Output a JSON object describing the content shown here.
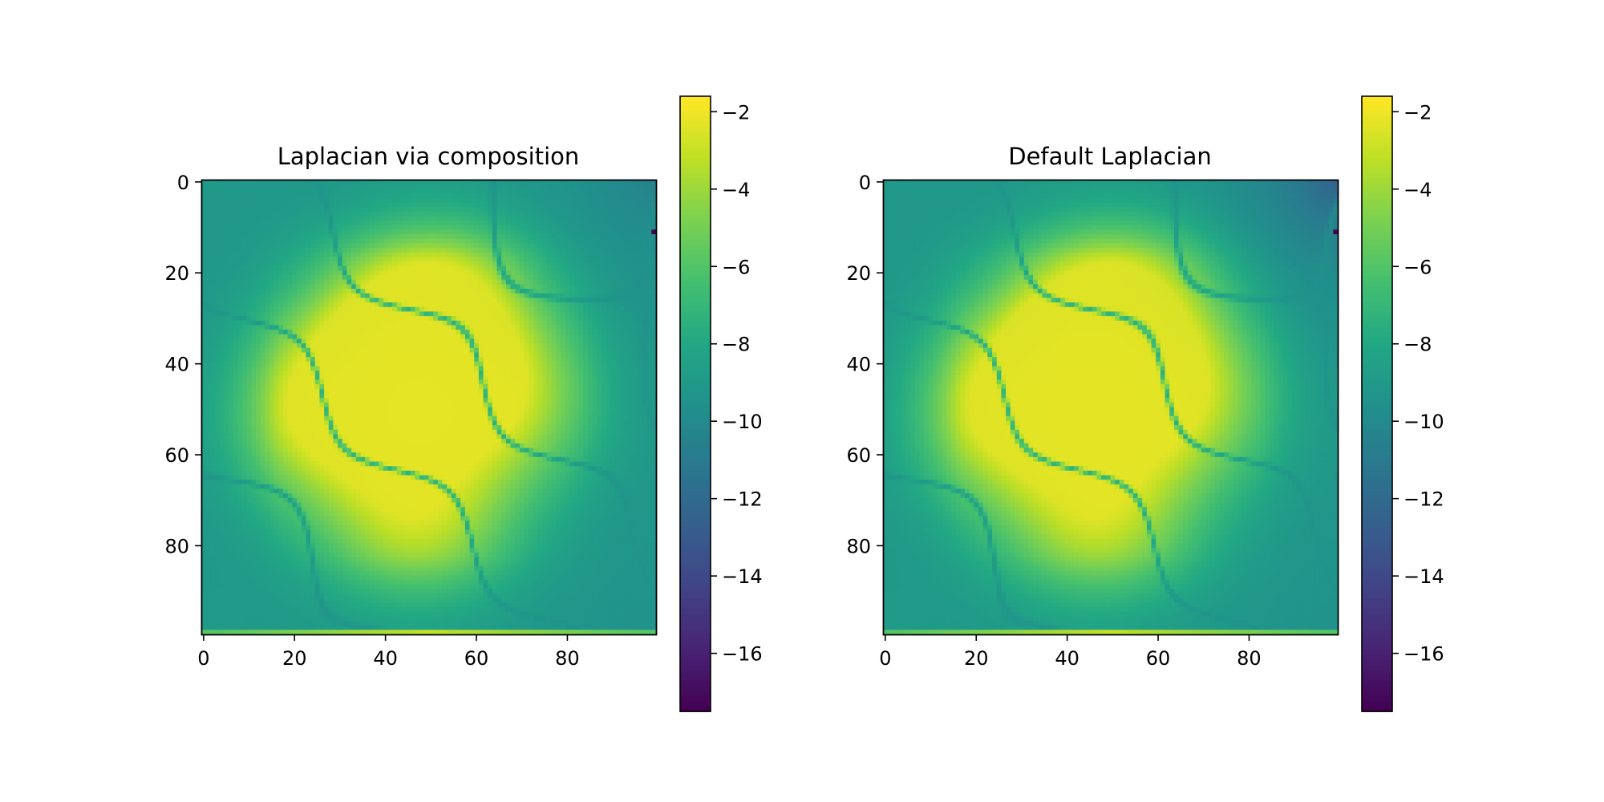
{
  "chart_data": [
    {
      "type": "heatmap",
      "title": "Laplacian via composition",
      "xlabel": "",
      "ylabel": "",
      "grid_size": [
        100,
        100
      ],
      "xlim": [
        -0.5,
        99.5
      ],
      "ylim": [
        99.5,
        -0.5
      ],
      "x_ticks": [
        0,
        20,
        40,
        60,
        80
      ],
      "x_tick_labels": [
        "0",
        "20",
        "40",
        "60",
        "80"
      ],
      "y_ticks": [
        0,
        20,
        40,
        60,
        80
      ],
      "y_tick_labels": [
        "0",
        "20",
        "40",
        "60",
        "80"
      ],
      "colormap": "viridis",
      "colorbar": {
        "range": [
          -17.5,
          -1.6
        ],
        "ticks": [
          -2,
          -4,
          -6,
          -8,
          -10,
          -12,
          -14,
          -16
        ],
        "tick_labels": [
          "−2",
          "−4",
          "−6",
          "−8",
          "−10",
          "−12",
          "−14",
          "−16"
        ]
      },
      "value_range": [
        -17.5,
        -1.6
      ],
      "features": {
        "peak_lobes": [
          {
            "center_x": 52,
            "center_y": 25,
            "value": -1.8
          },
          {
            "center_x": 47,
            "center_y": 75,
            "value": -1.9
          },
          {
            "center_x": 40,
            "center_y": 38,
            "value": -2.4
          },
          {
            "center_x": 25,
            "center_y": 52,
            "value": -2.7
          },
          {
            "center_x": 65,
            "center_y": 48,
            "value": -2.8
          }
        ],
        "zero_contour_value": -9.5,
        "corner_values": {
          "top_left": -9.0,
          "top_right": -10.5,
          "bottom_left": -8.8,
          "bottom_right": -9.5
        },
        "minimum": {
          "x": 99,
          "y": 11,
          "value": -17.5
        }
      }
    },
    {
      "type": "heatmap",
      "title": "Default Laplacian",
      "xlabel": "",
      "ylabel": "",
      "grid_size": [
        100,
        100
      ],
      "xlim": [
        -0.5,
        99.5
      ],
      "ylim": [
        99.5,
        -0.5
      ],
      "x_ticks": [
        0,
        20,
        40,
        60,
        80
      ],
      "x_tick_labels": [
        "0",
        "20",
        "40",
        "60",
        "80"
      ],
      "y_ticks": [
        0,
        20,
        40,
        60,
        80
      ],
      "y_tick_labels": [
        "0",
        "20",
        "40",
        "60",
        "80"
      ],
      "colormap": "viridis",
      "colorbar": {
        "range": [
          -17.5,
          -1.6
        ],
        "ticks": [
          -2,
          -4,
          -6,
          -8,
          -10,
          -12,
          -14,
          -16
        ],
        "tick_labels": [
          "−2",
          "−4",
          "−6",
          "−8",
          "−10",
          "−12",
          "−14",
          "−16"
        ]
      },
      "value_range": [
        -17.5,
        -1.6
      ],
      "features": {
        "peak_lobes": [
          {
            "center_x": 52,
            "center_y": 25,
            "value": -1.8
          },
          {
            "center_x": 47,
            "center_y": 75,
            "value": -1.9
          },
          {
            "center_x": 40,
            "center_y": 38,
            "value": -2.4
          },
          {
            "center_x": 25,
            "center_y": 52,
            "value": -2.7
          },
          {
            "center_x": 65,
            "center_y": 48,
            "value": -2.8
          }
        ],
        "zero_contour_value": -9.5,
        "corner_values": {
          "top_left": -9.0,
          "top_right": -12.5,
          "bottom_left": -8.8,
          "bottom_right": -9.5
        },
        "minimum": {
          "x": 99,
          "y": 11,
          "value": -17.5
        }
      }
    }
  ]
}
